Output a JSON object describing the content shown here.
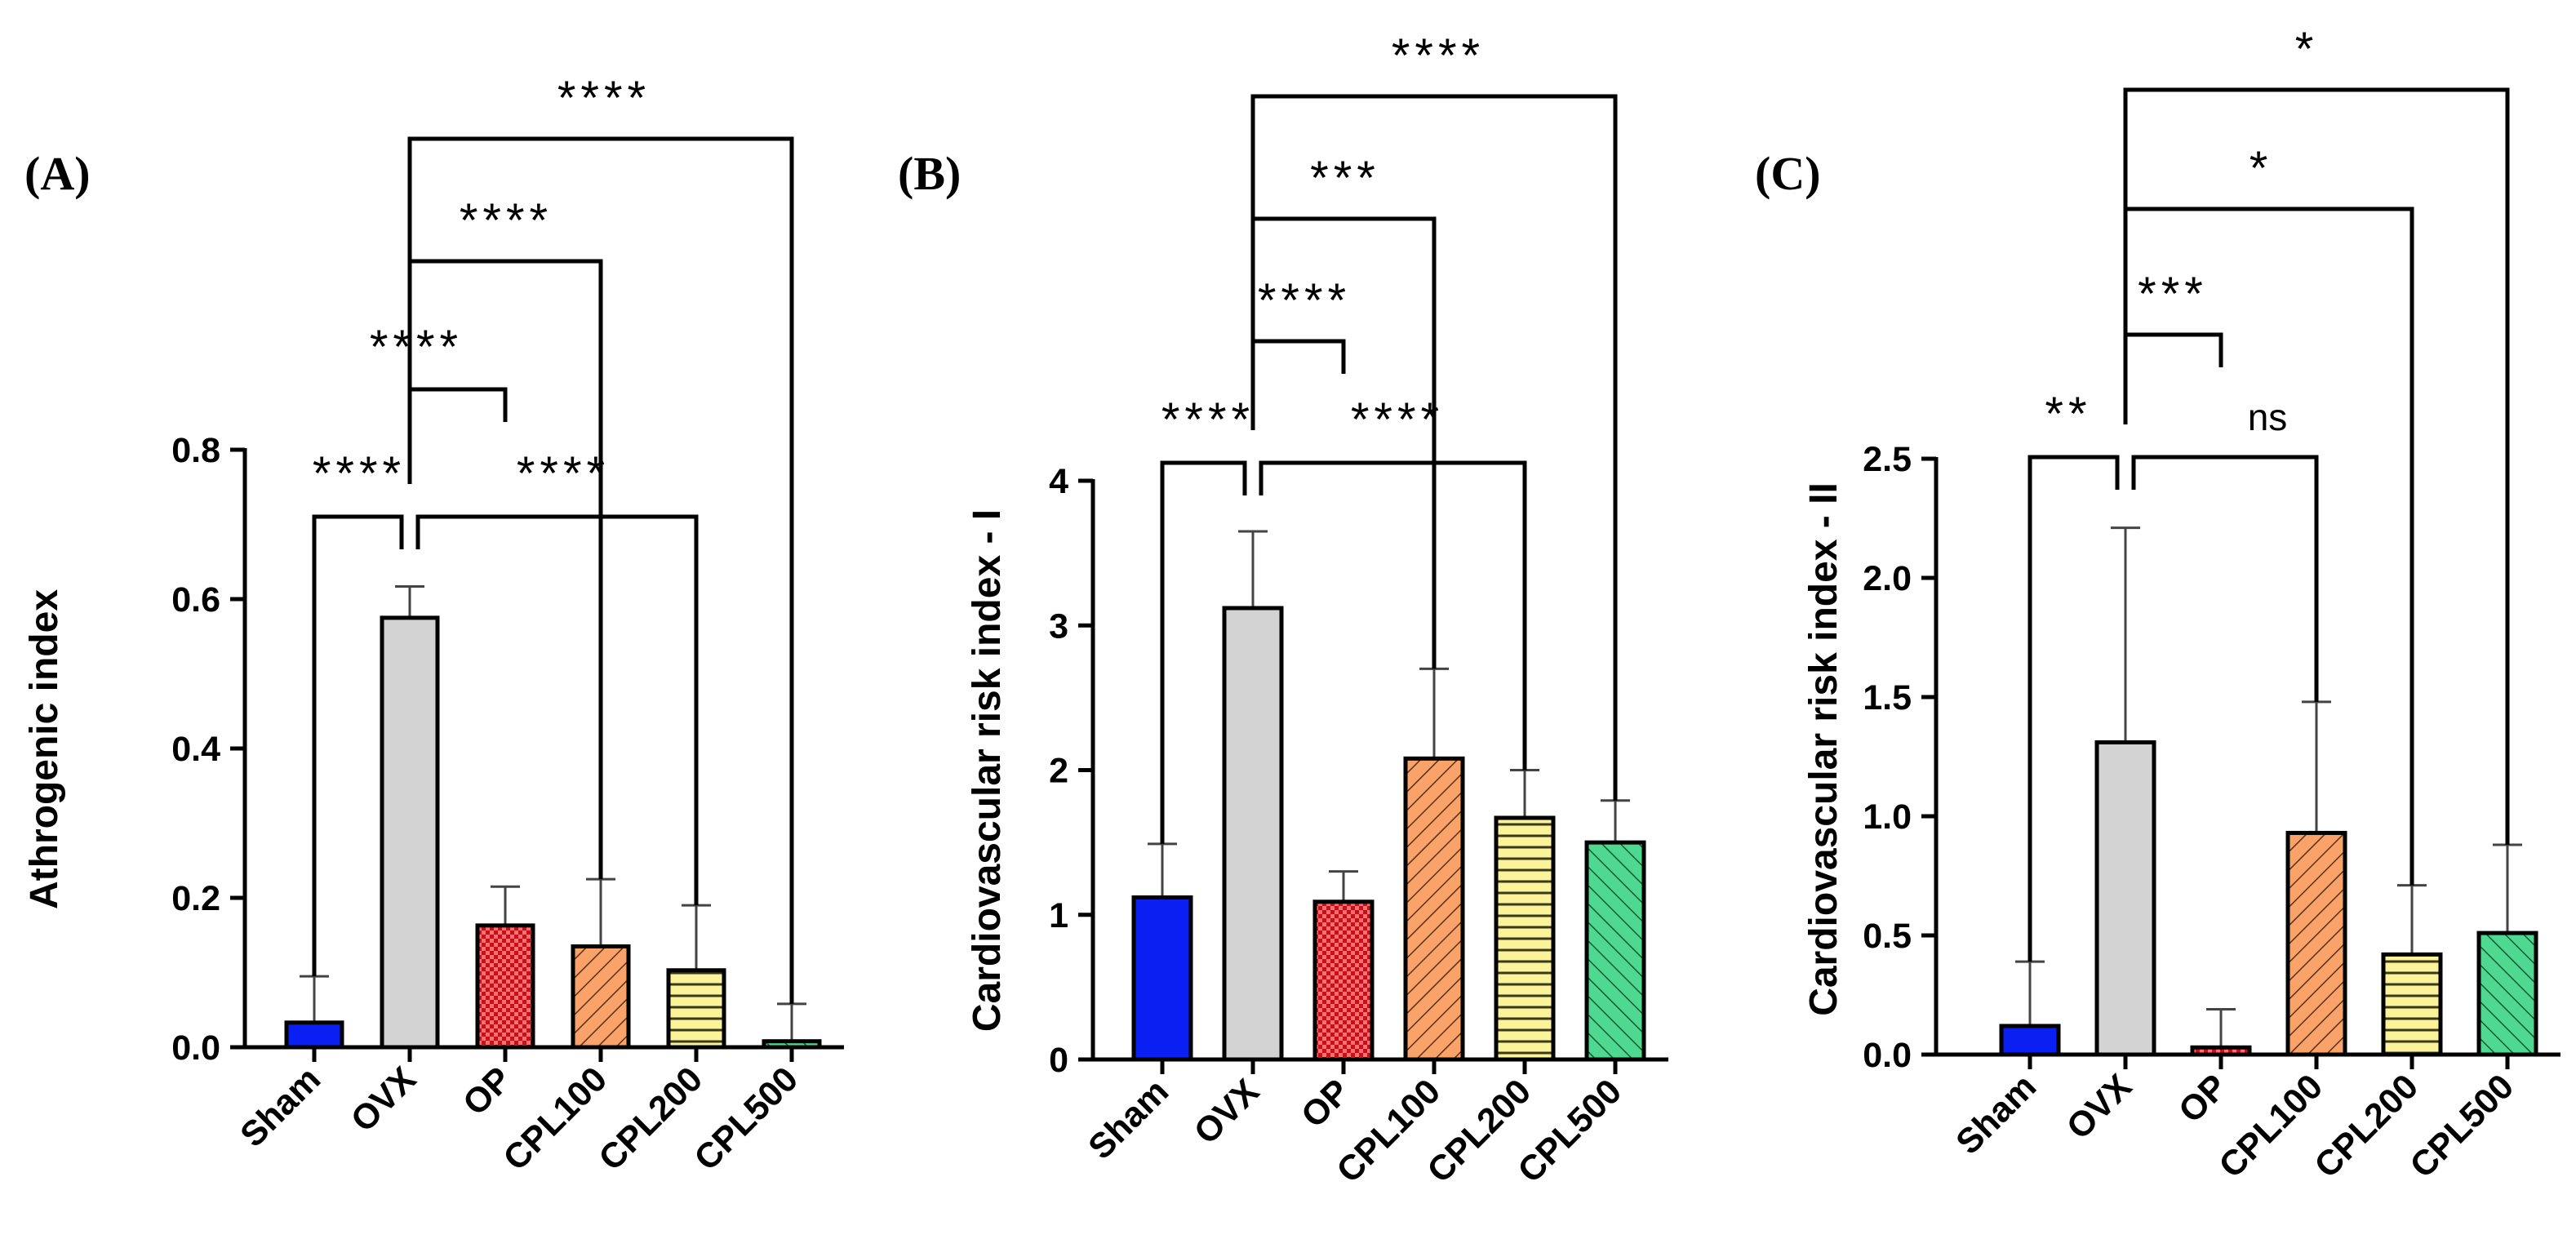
{
  "colors": {
    "Sham": "#0a1ff2",
    "OVX": "#d3d3d3",
    "OP": "#e8202a",
    "CPL100": "#f9a36b",
    "CPL200": "#fbf39a",
    "CPL500": "#4fd990",
    "axis": "#000000",
    "error_bar": "#444444"
  },
  "patterns": {
    "Sham": "solid",
    "OVX": "solid",
    "OP": "checkerboard",
    "CPL100": "diagonal-hatch",
    "CPL200": "horizontal-lines",
    "CPL500": "diagonal-hatch-reverse"
  },
  "chart_data": [
    {
      "type": "bar",
      "panel_label": "(A)",
      "categories": [
        "Sham",
        "OVX",
        "OP",
        "CPL100",
        "CPL200",
        "CPL500"
      ],
      "values": [
        0.033,
        0.575,
        0.163,
        0.135,
        0.103,
        0.008
      ],
      "error_upper": [
        0.095,
        0.617,
        0.215,
        0.225,
        0.19,
        0.058
      ],
      "ylabel": "Athrogenic index",
      "xlabel": "",
      "ylim": [
        0,
        0.8
      ],
      "yticks": [
        "0.0",
        "0.2",
        "0.4",
        "0.6",
        "0.8"
      ],
      "ytick_values": [
        0,
        0.2,
        0.4,
        0.6,
        0.8
      ],
      "comparisons": [
        {
          "from": "OVX",
          "to": "Sham",
          "label": "****"
        },
        {
          "from": "OVX",
          "to": "OP",
          "label": "****"
        },
        {
          "from": "OVX",
          "to": "CPL100",
          "label": "****"
        },
        {
          "from": "OVX",
          "to": "CPL200",
          "label": "****"
        },
        {
          "from": "OVX",
          "to": "CPL500",
          "label": "****"
        }
      ]
    },
    {
      "type": "bar",
      "panel_label": "(B)",
      "categories": [
        "Sham",
        "OVX",
        "OP",
        "CPL100",
        "CPL200",
        "CPL500"
      ],
      "values": [
        1.12,
        3.12,
        1.09,
        2.08,
        1.67,
        1.5
      ],
      "error_upper": [
        1.49,
        3.65,
        1.3,
        2.7,
        2.0,
        1.79
      ],
      "ylabel": "Cardiovascular risk index - I",
      "xlabel": "",
      "ylim": [
        0,
        4
      ],
      "yticks": [
        "0",
        "1",
        "2",
        "3",
        "4"
      ],
      "ytick_values": [
        0,
        1,
        2,
        3,
        4
      ],
      "comparisons": [
        {
          "from": "OVX",
          "to": "Sham",
          "label": "****"
        },
        {
          "from": "OVX",
          "to": "OP",
          "label": "****"
        },
        {
          "from": "OVX",
          "to": "CPL100",
          "label": "***"
        },
        {
          "from": "OVX",
          "to": "CPL200",
          "label": "****"
        },
        {
          "from": "OVX",
          "to": "CPL500",
          "label": "****"
        }
      ]
    },
    {
      "type": "bar",
      "panel_label": "(C)",
      "categories": [
        "Sham",
        "OVX",
        "OP",
        "CPL100",
        "CPL200",
        "CPL500"
      ],
      "values": [
        0.12,
        1.31,
        0.03,
        0.93,
        0.42,
        0.51
      ],
      "error_upper": [
        0.39,
        2.21,
        0.19,
        1.48,
        0.71,
        0.88
      ],
      "ylabel": "Cardiovascular risk index - II",
      "xlabel": "",
      "ylim": [
        0,
        2.5
      ],
      "yticks": [
        "0.0",
        "0.5",
        "1.0",
        "1.5",
        "2.0",
        "2.5"
      ],
      "ytick_values": [
        0,
        0.5,
        1.0,
        1.5,
        2.0,
        2.5
      ],
      "comparisons": [
        {
          "from": "OVX",
          "to": "Sham",
          "label": "**"
        },
        {
          "from": "OVX",
          "to": "OP",
          "label": "***"
        },
        {
          "from": "OVX",
          "to": "CPL100",
          "label": "ns"
        },
        {
          "from": "OVX",
          "to": "CPL200",
          "label": "*"
        },
        {
          "from": "OVX",
          "to": "CPL500",
          "label": "*"
        }
      ]
    }
  ]
}
